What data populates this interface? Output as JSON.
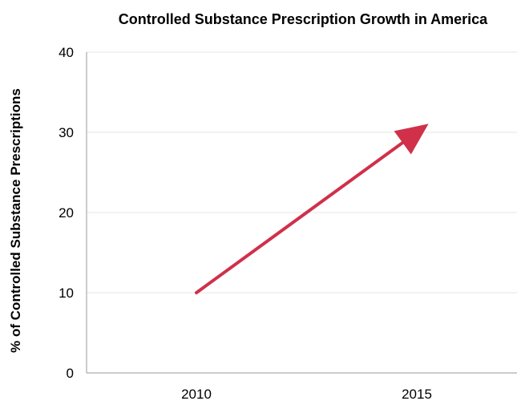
{
  "chart_data": {
    "type": "line",
    "title": "Controlled Substance Prescription Growth in America",
    "xlabel": "",
    "ylabel": "% of Controlled Substance Prescriptions",
    "categories": [
      "2010",
      "2015"
    ],
    "yticks": [
      "0",
      "10",
      "20",
      "30",
      "40"
    ],
    "ylim": [
      0,
      40
    ],
    "grid": true,
    "series": [
      {
        "x": [
          "2010",
          "2015"
        ],
        "values": [
          10,
          30
        ]
      }
    ],
    "annotation": "arrow",
    "colors": {
      "arrow": "#d0304a",
      "grid": "#e6e6e6",
      "axis": "#9a9a9a"
    }
  }
}
